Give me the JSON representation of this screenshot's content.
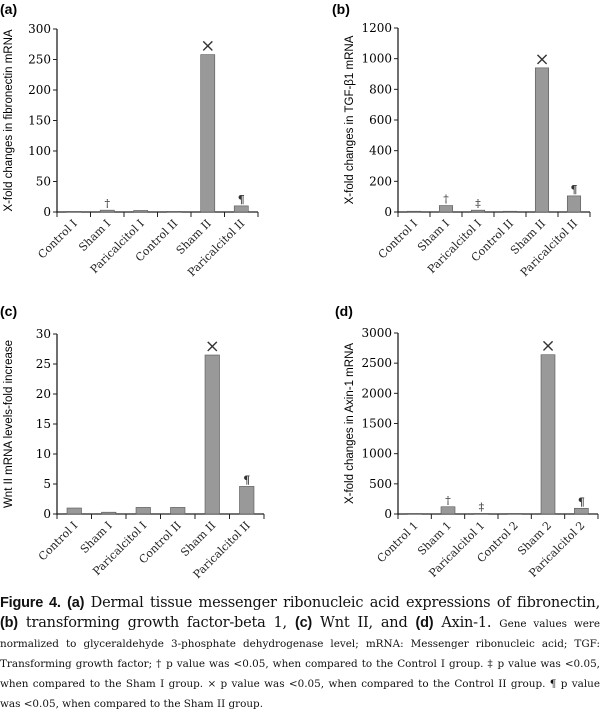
{
  "chart_data": [
    {
      "type": "bar",
      "panel_label": "(a)",
      "ylabel": "X-fold changes in fibronectin mRNA",
      "ylim": [
        0,
        300
      ],
      "yticks": [
        0,
        50,
        100,
        150,
        200,
        250,
        300
      ],
      "categories": [
        "Control I",
        "Sham I",
        "Paricalcitol I",
        "Control II",
        "Sham II",
        "Paricalcitol II"
      ],
      "values": [
        1,
        3,
        2.5,
        1,
        258,
        10
      ],
      "annotations": [
        "",
        "†",
        "",
        "",
        "×",
        "¶"
      ]
    },
    {
      "type": "bar",
      "panel_label": "(b)",
      "ylabel": "X-fold changes in TGF-β1 mRNA",
      "ylim": [
        0,
        1200
      ],
      "yticks": [
        0,
        200,
        400,
        600,
        800,
        1000,
        1200
      ],
      "categories": [
        "Control I",
        "Sham I",
        "Paricalcitol I",
        "Control II",
        "Sham II",
        "Paricalcitol II"
      ],
      "values": [
        5,
        42,
        12,
        5,
        940,
        105
      ],
      "annotations": [
        "",
        "†",
        "‡",
        "",
        "×",
        "¶"
      ]
    },
    {
      "type": "bar",
      "panel_label": "(c)",
      "ylabel": "Wnt II mRNA levels-fold increase",
      "ylim": [
        0,
        30
      ],
      "yticks": [
        0,
        5,
        10,
        15,
        20,
        25,
        30
      ],
      "categories": [
        "Control I",
        "Sham I",
        "Paricalcitol I",
        "Control II",
        "Sham II",
        "Paricalcitol II"
      ],
      "values": [
        1,
        0.3,
        1.1,
        1.1,
        26.5,
        4.6
      ],
      "annotations": [
        "",
        "",
        "",
        "",
        "×",
        "¶"
      ]
    },
    {
      "type": "bar",
      "panel_label": "(d)",
      "ylabel": "X-fold changes in Axin-1 mRNA",
      "ylim": [
        0,
        3000
      ],
      "yticks": [
        0,
        500,
        1000,
        1500,
        2000,
        2500,
        3000
      ],
      "categories": [
        "Control 1",
        "Sham 1",
        "Paricalcitol 1",
        "Control 2",
        "Sham 2",
        "Paricalcitol 2"
      ],
      "values": [
        10,
        120,
        10,
        10,
        2640,
        95
      ],
      "annotations": [
        "",
        "†",
        "‡",
        "",
        "×",
        "¶"
      ]
    }
  ],
  "colors": {
    "bar": "#999999",
    "bar_edge": "#555555",
    "axis": "#222222"
  },
  "caption": {
    "fig_label": "Figure 4.",
    "a": "(a)",
    "a_text": " Dermal tissue messenger ribonucleic acid expressions of fibronectin, ",
    "b": "(b)",
    "b_text": " transforming growth factor-beta 1, ",
    "c": "(c)",
    "c_text": " Wnt II, and ",
    "d": "(d)",
    "d_text": " Axin-1. ",
    "notes": "Gene values were normalized to glyceraldehyde 3-phosphate dehydrogenase level; mRNA: Messenger ribonucleic acid; TGF: Transforming growth factor; † p value was <0.05, when compared to the Control I group. ‡ p value was <0.05, when compared to the Sham I group. × p value was <0.05, when compared to the Control II group. ¶ p value was <0.05, when compared to the Sham II group."
  }
}
